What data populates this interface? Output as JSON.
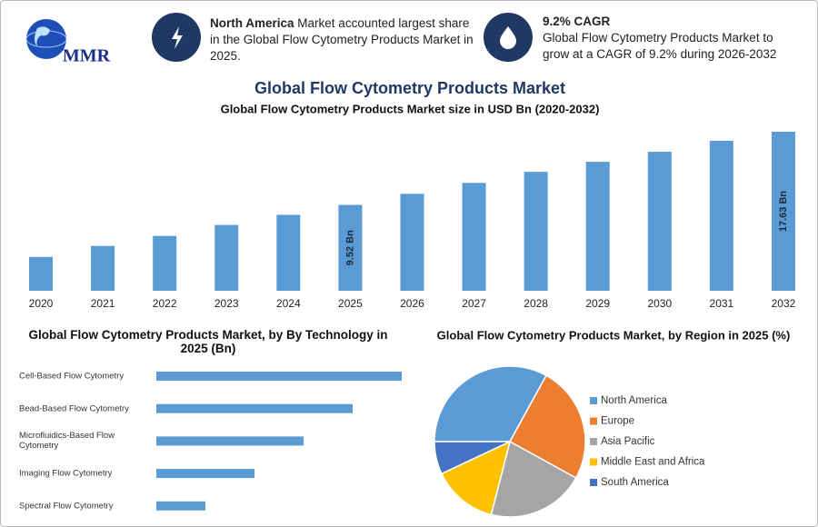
{
  "header": {
    "logo": "MMR",
    "cards": [
      {
        "title": "North America",
        "text": "Market accounted largest share in the Global Flow Cytometry Products Market in 2025."
      },
      {
        "title": "9.2% CAGR",
        "text": "Global Flow Cytometry Products Market to grow at a CAGR of 9.2% during 2026-2032"
      }
    ]
  },
  "title": "Global Flow Cytometry Products Market",
  "chart_data": [
    {
      "type": "bar",
      "title": "Global Flow Cytometry Products Market size in USD Bn (2020-2032)",
      "categories": [
        "2020",
        "2021",
        "2022",
        "2023",
        "2024",
        "2025",
        "2026",
        "2027",
        "2028",
        "2029",
        "2030",
        "2031",
        "2032"
      ],
      "values": [
        3.75,
        4.97,
        6.08,
        7.3,
        8.42,
        9.52,
        10.75,
        11.96,
        13.18,
        14.3,
        15.41,
        16.63,
        17.63
      ],
      "value_labels": [
        null,
        null,
        null,
        null,
        null,
        "9.52 Bn",
        null,
        null,
        null,
        null,
        null,
        null,
        "17.63 Bn"
      ],
      "color": "#5b9bd5"
    },
    {
      "type": "bar",
      "orientation": "horizontal",
      "title": "Global Flow Cytometry Products Market, by By Technology in 2025 (Bn)",
      "categories": [
        "Cell-Based Flow Cytometry",
        "Bead-Based Flow Cytometry",
        "Microfluidics-Based Flow Cytometry",
        "Imaging Flow Cytometry",
        "Spectral Flow Cytometry"
      ],
      "values": [
        2.5,
        2.0,
        1.5,
        1.0,
        0.5
      ],
      "color": "#5b9bd5"
    },
    {
      "type": "pie",
      "title": "Global Flow Cytometry Products Market, by Region in 2025 (%)",
      "categories": [
        "North America",
        "Europe",
        "Asia Pacific",
        "Middle East and Africa",
        "South America"
      ],
      "values": [
        33,
        25,
        21,
        14,
        7
      ],
      "colors": [
        "#5b9bd5",
        "#ed7d31",
        "#a5a5a5",
        "#ffc000",
        "#4472c4"
      ],
      "legend": "right"
    }
  ]
}
